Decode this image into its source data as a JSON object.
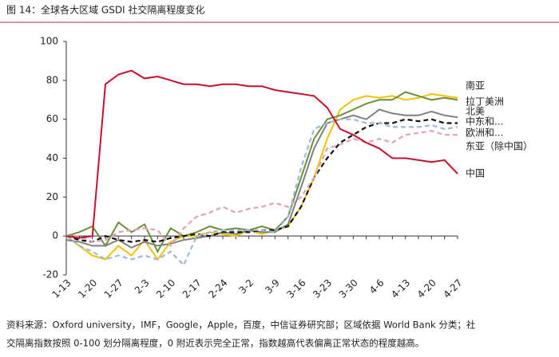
{
  "chart_data": {
    "type": "line",
    "title": "图 14：全球各大区域 GSDI 社交隔离程度变化",
    "categories": [
      "1-13",
      null,
      "1-20",
      null,
      "1-27",
      null,
      "2-3",
      null,
      "2-10",
      null,
      "2-17",
      null,
      "2-24",
      null,
      "3-2",
      null,
      "3-9",
      null,
      "3-16",
      null,
      "3-23",
      null,
      "3-30",
      null,
      "4-6",
      null,
      "4-13",
      null,
      "4-20",
      null,
      "4-27"
    ],
    "ylim": [
      -20,
      100
    ],
    "yticks": [
      -20,
      0,
      20,
      40,
      60,
      80,
      100
    ],
    "series": [
      {
        "name": "南亚",
        "color": "#f2c200",
        "style": "solid",
        "values": [
          0,
          -5,
          -10,
          -12,
          -5,
          -10,
          -2,
          -12,
          -3,
          0,
          0,
          2,
          1,
          0,
          3,
          1,
          3,
          5,
          15,
          30,
          50,
          65,
          70,
          72,
          71,
          72,
          70,
          71,
          73,
          72,
          71
        ]
      },
      {
        "name": "拉丁美洲",
        "color": "#6b8e3a",
        "style": "solid",
        "values": [
          0,
          2,
          5,
          -5,
          7,
          2,
          6,
          -8,
          4,
          0,
          2,
          5,
          3,
          4,
          3,
          5,
          3,
          10,
          30,
          50,
          60,
          62,
          65,
          68,
          70,
          70,
          74,
          72,
          70,
          71,
          70
        ]
      },
      {
        "name": "北美",
        "color": "#808080",
        "style": "solid",
        "values": [
          -2,
          -3,
          -5,
          -5,
          -2,
          -6,
          -3,
          -5,
          -4,
          -2,
          -1,
          0,
          2,
          1,
          3,
          2,
          2,
          6,
          25,
          45,
          58,
          60,
          62,
          60,
          65,
          63,
          62,
          62,
          64,
          62,
          61
        ]
      },
      {
        "name": "中东和...",
        "color": "#111111",
        "style": "dashed",
        "values": [
          0,
          -2,
          -3,
          0,
          -2,
          -3,
          -2,
          -3,
          -1,
          0,
          1,
          0,
          2,
          2,
          2,
          3,
          3,
          5,
          15,
          30,
          40,
          48,
          52,
          56,
          58,
          58,
          60,
          59,
          60,
          58,
          58
        ]
      },
      {
        "name": "欧洲和...",
        "color": "#9db8d9",
        "style": "dashed",
        "values": [
          0,
          -5,
          -8,
          -12,
          -10,
          -12,
          -10,
          -12,
          -8,
          -15,
          0,
          2,
          3,
          3,
          3,
          3,
          2,
          10,
          35,
          55,
          58,
          60,
          60,
          58,
          58,
          56,
          56,
          56,
          57,
          55,
          56
        ]
      },
      {
        "name": "东亚（除中国）",
        "color": "#e3a1b3",
        "style": "dashed",
        "values": [
          0,
          0,
          -3,
          -2,
          2,
          3,
          4,
          3,
          -5,
          4,
          10,
          12,
          15,
          12,
          14,
          15,
          17,
          15,
          20,
          30,
          45,
          47,
          50,
          48,
          50,
          48,
          52,
          53,
          54,
          52,
          52
        ]
      },
      {
        "name": "中国",
        "color": "#c8102e",
        "style": "solid",
        "values": [
          0,
          -1,
          0,
          78,
          83,
          85,
          81,
          82,
          80,
          78,
          78,
          77,
          78,
          78,
          77,
          77,
          75,
          74,
          73,
          72,
          66,
          55,
          52,
          48,
          45,
          40,
          40,
          39,
          38,
          39,
          32
        ]
      }
    ],
    "source_lines": [
      "资料来源：Oxford university，IMF，Google，Apple，百度，中信证券研究部；区域依据 World Bank 分类；社",
      "交隔离指数按照 0-100 划分隔离程度，0 附近表示完全正常，指数越高代表偏离正常状态的程度越高。"
    ]
  }
}
